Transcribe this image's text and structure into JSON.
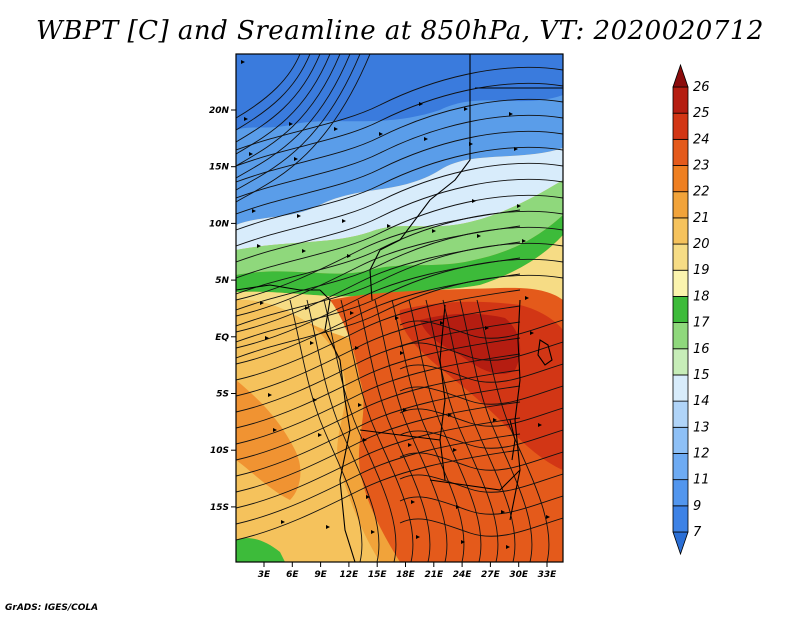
{
  "title": "WBPT [C] and Sreamline at 850hPa, VT: 2020020712",
  "footer": "GrADS: IGES/COLA",
  "map": {
    "lat_ticks": [
      "20N",
      "15N",
      "10N",
      "5N",
      "EQ",
      "5S",
      "10S",
      "15S"
    ],
    "lon_ticks": [
      "3E",
      "6E",
      "9E",
      "12E",
      "15E",
      "18E",
      "21E",
      "24E",
      "27E",
      "30E",
      "33E"
    ],
    "field": "WBPT",
    "units": "C",
    "level": "850hPa",
    "overlay": "streamlines"
  },
  "colorbar": {
    "labels": [
      "7",
      "9",
      "11",
      "12",
      "13",
      "14",
      "15",
      "16",
      "17",
      "18",
      "19",
      "20",
      "21",
      "22",
      "23",
      "24",
      "25",
      "26"
    ],
    "colors": [
      "#2b6fd6",
      "#3d82e6",
      "#5296ee",
      "#6eabf3",
      "#8ec0f6",
      "#b0d4f8",
      "#d8ecfb",
      "#c7edb8",
      "#8fd87c",
      "#3dbb3a",
      "#fbf4ae",
      "#f6dc85",
      "#f5c25c",
      "#f1a33a",
      "#ee7f21",
      "#e45a1b",
      "#d23615",
      "#b51d11",
      "#8b0c0c"
    ]
  }
}
